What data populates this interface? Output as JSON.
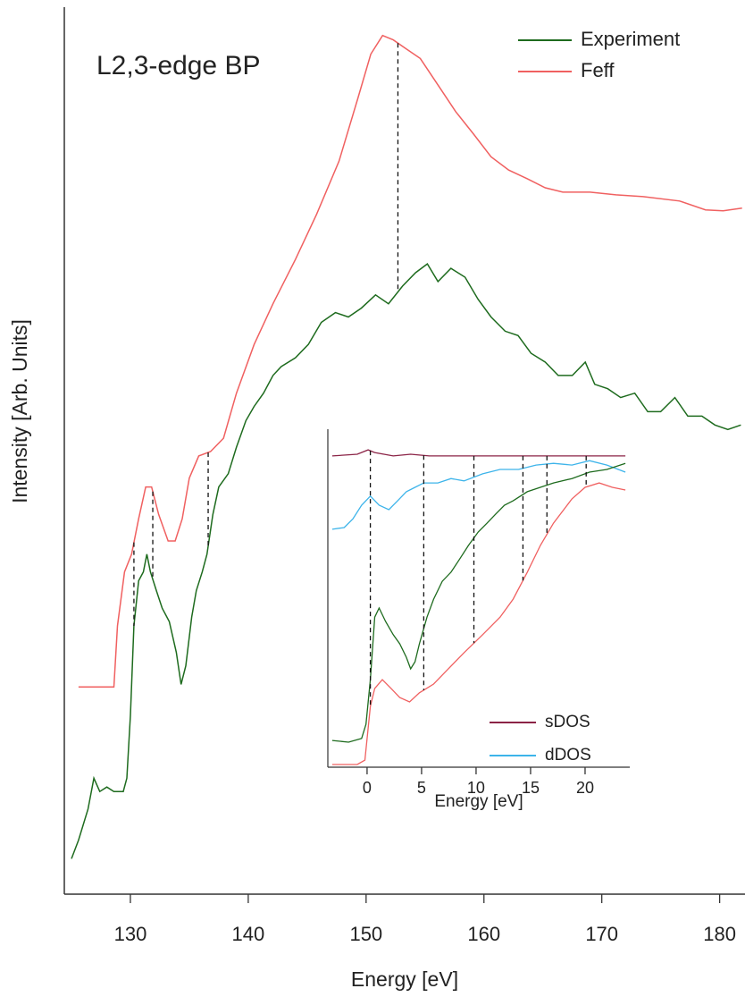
{
  "chart_data": [
    {
      "type": "line",
      "title": "L2,3-edge BP",
      "x_label": "Energy [eV]",
      "y_label": "Intensity [Arb. Units]",
      "xlim": [
        125,
        182
      ],
      "xticks": [
        130,
        140,
        150,
        160,
        170,
        180
      ],
      "ylim": [
        0,
        100
      ],
      "legend": "top-right",
      "reference_lines_x": [
        130.3,
        131.9,
        136.6,
        152.7
      ],
      "series": [
        {
          "name": "Experiment",
          "color": "#1e6b1e",
          "x": [
            125.0,
            125.6,
            126.4,
            126.9,
            127.4,
            128.0,
            128.6,
            129.4,
            129.7,
            130.0,
            130.3,
            130.7,
            131.1,
            131.4,
            131.7,
            132.2,
            132.7,
            133.3,
            133.9,
            134.3,
            134.7,
            135.2,
            135.6,
            136.1,
            136.5,
            137.0,
            137.5,
            138.3,
            139.0,
            139.8,
            140.5,
            141.3,
            142.1,
            142.8,
            144.0,
            145.1,
            146.2,
            147.4,
            148.5,
            149.6,
            150.8,
            151.9,
            153.1,
            154.2,
            155.2,
            156.1,
            157.2,
            158.4,
            159.5,
            160.6,
            161.8,
            162.9,
            164.0,
            165.2,
            166.3,
            167.5,
            168.6,
            169.4,
            170.5,
            171.6,
            172.8,
            173.9,
            175.0,
            176.2,
            177.3,
            178.5,
            179.6,
            180.7,
            181.8
          ],
          "values": [
            4.0,
            6.1,
            9.6,
            13.1,
            11.6,
            12.1,
            11.6,
            11.6,
            13.1,
            20.2,
            30.3,
            35.4,
            36.4,
            38.4,
            36.4,
            34.3,
            32.3,
            30.8,
            27.3,
            23.7,
            25.8,
            31.3,
            34.3,
            36.4,
            38.4,
            42.9,
            46.0,
            47.5,
            50.5,
            53.5,
            55.1,
            56.6,
            58.6,
            59.6,
            60.6,
            62.1,
            64.6,
            65.7,
            65.2,
            66.2,
            67.7,
            66.7,
            68.7,
            70.2,
            71.2,
            69.2,
            70.7,
            69.7,
            67.2,
            65.2,
            63.6,
            63.1,
            61.1,
            60.1,
            58.6,
            58.6,
            60.1,
            57.6,
            57.1,
            56.1,
            56.6,
            54.5,
            54.5,
            56.1,
            54.0,
            54.0,
            53.0,
            52.5,
            53.0
          ]
        },
        {
          "name": "Feff",
          "color": "#f06060",
          "x": [
            125.6,
            128.6,
            128.9,
            129.5,
            130.1,
            130.7,
            131.3,
            131.8,
            132.4,
            133.2,
            133.8,
            134.4,
            135.0,
            135.8,
            136.8,
            137.9,
            139.0,
            140.5,
            142.1,
            144.0,
            145.8,
            147.7,
            149.3,
            150.4,
            151.4,
            152.3,
            153.4,
            154.6,
            156.1,
            157.6,
            159.1,
            160.6,
            162.1,
            163.7,
            165.2,
            166.7,
            169.0,
            171.2,
            173.5,
            176.6,
            178.8,
            180.3,
            181.9
          ],
          "values": [
            23.4,
            23.4,
            30.3,
            36.4,
            38.4,
            42.4,
            46.0,
            46.0,
            42.9,
            39.9,
            39.9,
            42.4,
            47.0,
            49.5,
            50.0,
            51.5,
            56.6,
            62.1,
            66.7,
            71.7,
            76.8,
            82.8,
            89.9,
            94.9,
            97.0,
            96.5,
            95.5,
            94.4,
            91.4,
            88.4,
            85.9,
            83.3,
            81.8,
            80.8,
            79.8,
            79.3,
            79.3,
            79.0,
            78.8,
            78.3,
            77.3,
            77.2,
            77.5
          ]
        }
      ]
    },
    {
      "type": "line",
      "x_label": "Energy [eV]",
      "xlim": [
        -3.6,
        24.1
      ],
      "xticks": [
        0,
        5,
        10,
        15,
        20
      ],
      "ylim": [
        0,
        100
      ],
      "legend": "bottom-right",
      "reference_lines_x": [
        0.3,
        5.2,
        9.8,
        14.3,
        16.5,
        20.1
      ],
      "series": [
        {
          "name": "sDOS",
          "color": "#8b2346",
          "x": [
            -3.2,
            -0.9,
            0.1,
            0.7,
            2.4,
            4.0,
            5.7,
            8.9,
            15.5,
            19.6,
            23.7
          ],
          "values": [
            92.1,
            92.6,
            93.9,
            93.1,
            92.1,
            92.6,
            92.1,
            92.1,
            92.1,
            92.1,
            92.1
          ]
        },
        {
          "name": "dDOS",
          "color": "#3db4ea",
          "x": [
            -3.2,
            -2.1,
            -1.3,
            -0.5,
            0.3,
            1.1,
            2.0,
            2.8,
            3.6,
            4.4,
            5.2,
            6.5,
            7.7,
            8.9,
            10.6,
            12.2,
            13.9,
            15.5,
            17.1,
            18.8,
            20.4,
            22.0,
            23.7
          ],
          "values": [
            70.4,
            70.9,
            73.5,
            77.5,
            80.2,
            77.5,
            76.2,
            78.8,
            81.5,
            82.8,
            84.1,
            84.1,
            85.4,
            84.7,
            86.8,
            88.1,
            88.1,
            89.4,
            89.9,
            89.4,
            90.7,
            89.4,
            87.3
          ]
        },
        {
          "color": "#1e6b1e",
          "x": [
            -3.2,
            -1.7,
            -0.5,
            -0.1,
            0.3,
            0.7,
            1.1,
            1.7,
            2.4,
            3.0,
            3.6,
            4.0,
            4.4,
            4.8,
            5.5,
            6.1,
            6.9,
            7.7,
            8.5,
            9.3,
            10.2,
            11.0,
            11.8,
            12.6,
            13.4,
            14.7,
            15.9,
            17.1,
            18.8,
            20.4,
            22.0,
            23.7
          ],
          "values": [
            7.9,
            7.4,
            8.5,
            12.7,
            25.9,
            44.4,
            47.1,
            43.1,
            39.2,
            36.5,
            32.5,
            29.1,
            31.2,
            36.5,
            44.4,
            49.7,
            55.0,
            57.7,
            61.6,
            65.6,
            69.6,
            72.2,
            74.9,
            77.5,
            78.8,
            81.5,
            82.8,
            84.1,
            85.4,
            87.3,
            88.1,
            89.9
          ]
        },
        {
          "color": "#f06060",
          "x": [
            -3.2,
            -0.9,
            -0.2,
            0.3,
            0.7,
            1.4,
            2.2,
            3.0,
            3.9,
            4.8,
            6.1,
            7.3,
            8.9,
            10.6,
            12.2,
            13.4,
            14.7,
            15.9,
            17.1,
            18.8,
            20.0,
            21.3,
            22.5,
            23.7
          ],
          "values": [
            0.8,
            0.8,
            2.1,
            18.0,
            23.3,
            25.9,
            23.3,
            20.6,
            19.3,
            22.0,
            24.6,
            28.6,
            33.9,
            39.2,
            44.4,
            49.7,
            57.7,
            65.6,
            72.2,
            79.4,
            82.8,
            84.1,
            82.8,
            82.0
          ]
        }
      ]
    }
  ]
}
